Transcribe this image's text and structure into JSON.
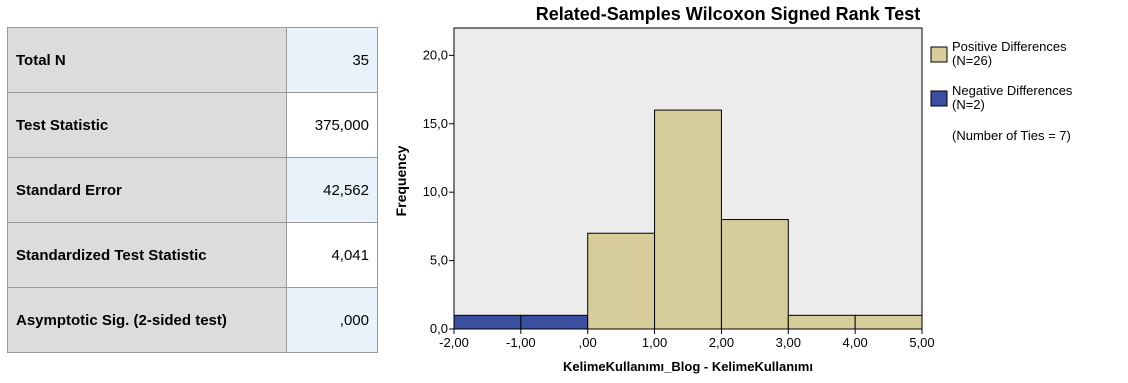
{
  "table": {
    "rows": [
      {
        "label": "Total N",
        "value": "35"
      },
      {
        "label": "Test Statistic",
        "value": "375,000"
      },
      {
        "label": "Standard Error",
        "value": "42,562"
      },
      {
        "label": "Standardized Test Statistic",
        "value": "4,041"
      },
      {
        "label": "Asymptotic Sig. (2-sided test)",
        "value": ",000"
      }
    ]
  },
  "colors": {
    "positive": "#d6cd9a",
    "negative": "#3a4fa0",
    "plot_bg": "#ececec",
    "table_label_bg": "#dcdcdc",
    "highlight_bg": "#e8f2fb"
  },
  "chart_data": {
    "type": "bar",
    "title": "Related-Samples Wilcoxon Signed Rank Test",
    "xlabel": "KelimeKullanımı_Blog - KelimeKullanımı",
    "ylabel": "Frequency",
    "xlim": [
      -2,
      5
    ],
    "ylim": [
      0,
      22
    ],
    "x_ticks": [
      -2,
      -1,
      0,
      1,
      2,
      3,
      4,
      5
    ],
    "x_tick_labels": [
      "-2,00",
      "-1,00",
      ",00",
      "1,00",
      "2,00",
      "3,00",
      "4,00",
      "5,00"
    ],
    "y_ticks": [
      0,
      5,
      10,
      15,
      20
    ],
    "y_tick_labels": [
      "0,0",
      "5,0",
      "10,0",
      "15,0",
      "20,0"
    ],
    "series": [
      {
        "name": "Negative Differences",
        "bins": [
          {
            "x0": -2,
            "x1": -1,
            "value": 1
          },
          {
            "x0": -1,
            "x1": 0,
            "value": 1
          }
        ]
      },
      {
        "name": "Positive Differences",
        "bins": [
          {
            "x0": 0,
            "x1": 1,
            "value": 7
          },
          {
            "x0": 1,
            "x1": 2,
            "value": 16
          },
          {
            "x0": 2,
            "x1": 3,
            "value": 8
          },
          {
            "x0": 3,
            "x1": 4,
            "value": 1
          },
          {
            "x0": 4,
            "x1": 5,
            "value": 1
          }
        ]
      }
    ],
    "legend": {
      "placement": "right",
      "entries": [
        {
          "line1": "Positive Differences",
          "line2": "(N=26)",
          "series": "Positive Differences"
        },
        {
          "line1": "Negative Differences",
          "line2": "(N=2)",
          "series": "Negative Differences"
        }
      ],
      "note": "(Number of Ties = 7)"
    }
  }
}
